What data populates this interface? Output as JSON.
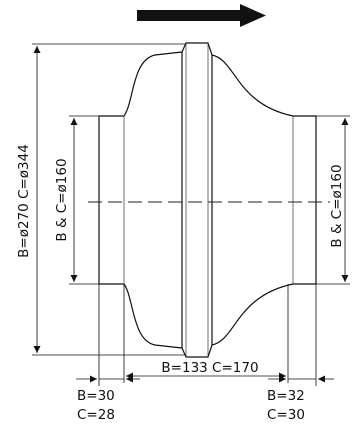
{
  "dimensions": {
    "outer_diameter": "B=ø270  C=ø344",
    "inlet_diameter": "B & C=ø160",
    "outlet_diameter": "B & C=ø160",
    "body_length": "B=133 C=170",
    "inlet_spigot_b": "B=30",
    "inlet_spigot_c": "C=28",
    "outlet_spigot_b": "B=32",
    "outlet_spigot_c": "C=30"
  },
  "icons": {
    "flow_direction": "arrow-right-icon"
  },
  "colors": {
    "line": "#111111",
    "background": "#ffffff"
  }
}
